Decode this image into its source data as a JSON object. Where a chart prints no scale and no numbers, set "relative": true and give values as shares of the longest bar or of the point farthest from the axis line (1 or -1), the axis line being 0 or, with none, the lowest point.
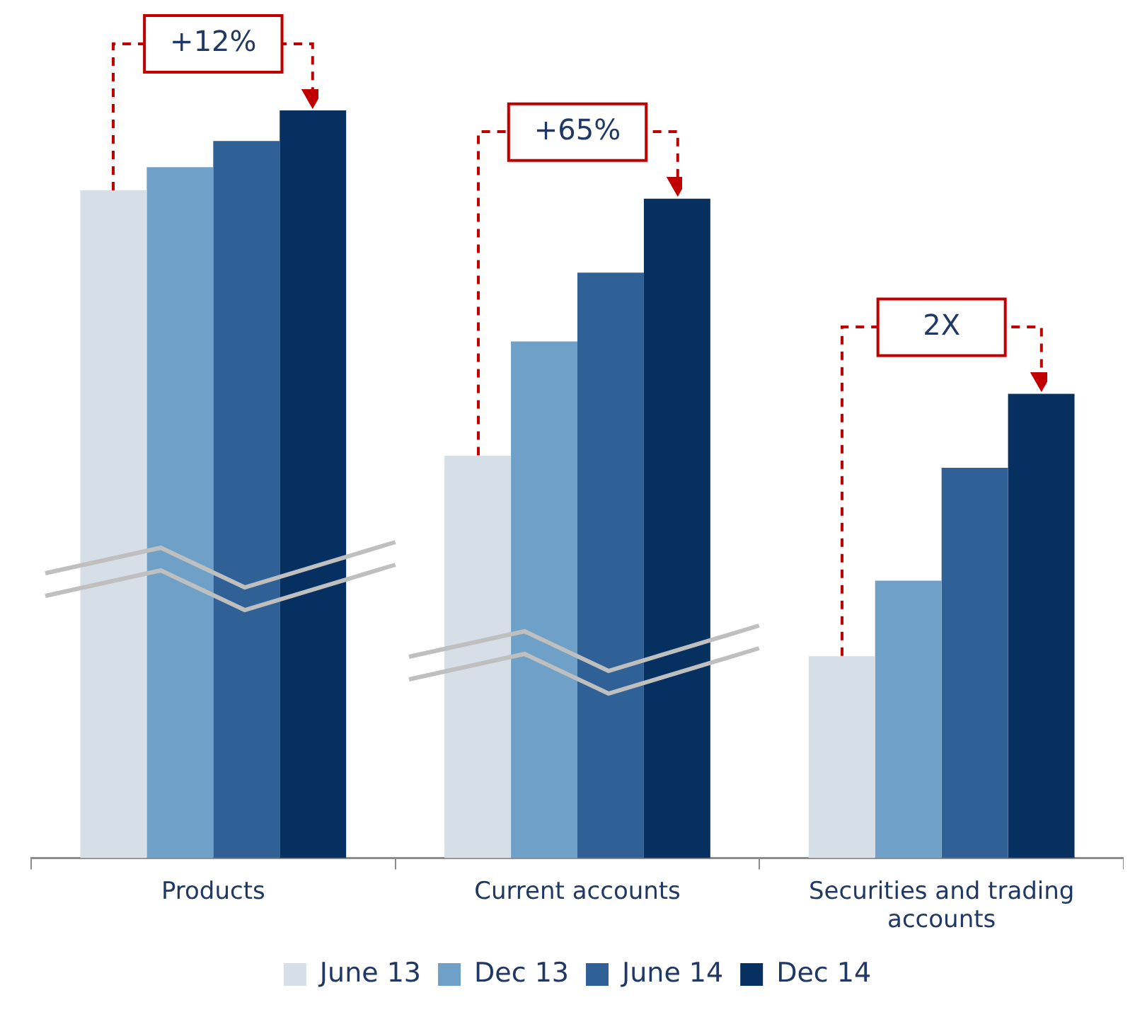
{
  "chart_data": {
    "type": "bar",
    "relative": true,
    "categories": [
      "Products",
      "Current accounts",
      "Securities and trading accounts"
    ],
    "series": [
      {
        "name": "June 13",
        "color": "#d6dfe8",
        "values": [
          0.893,
          0.538,
          0.27
        ]
      },
      {
        "name": "Dec 13",
        "color": "#6fa0c7",
        "values": [
          0.924,
          0.691,
          0.371
        ]
      },
      {
        "name": "June 14",
        "color": "#2f6096",
        "values": [
          0.959,
          0.783,
          0.522
        ]
      },
      {
        "name": "Dec 14",
        "color": "#05305f",
        "values": [
          1,
          0.882,
          0.621
        ]
      }
    ],
    "annotations": [
      "+12%",
      "+65%",
      "2X"
    ],
    "legend": "bottom",
    "grid": false
  }
}
